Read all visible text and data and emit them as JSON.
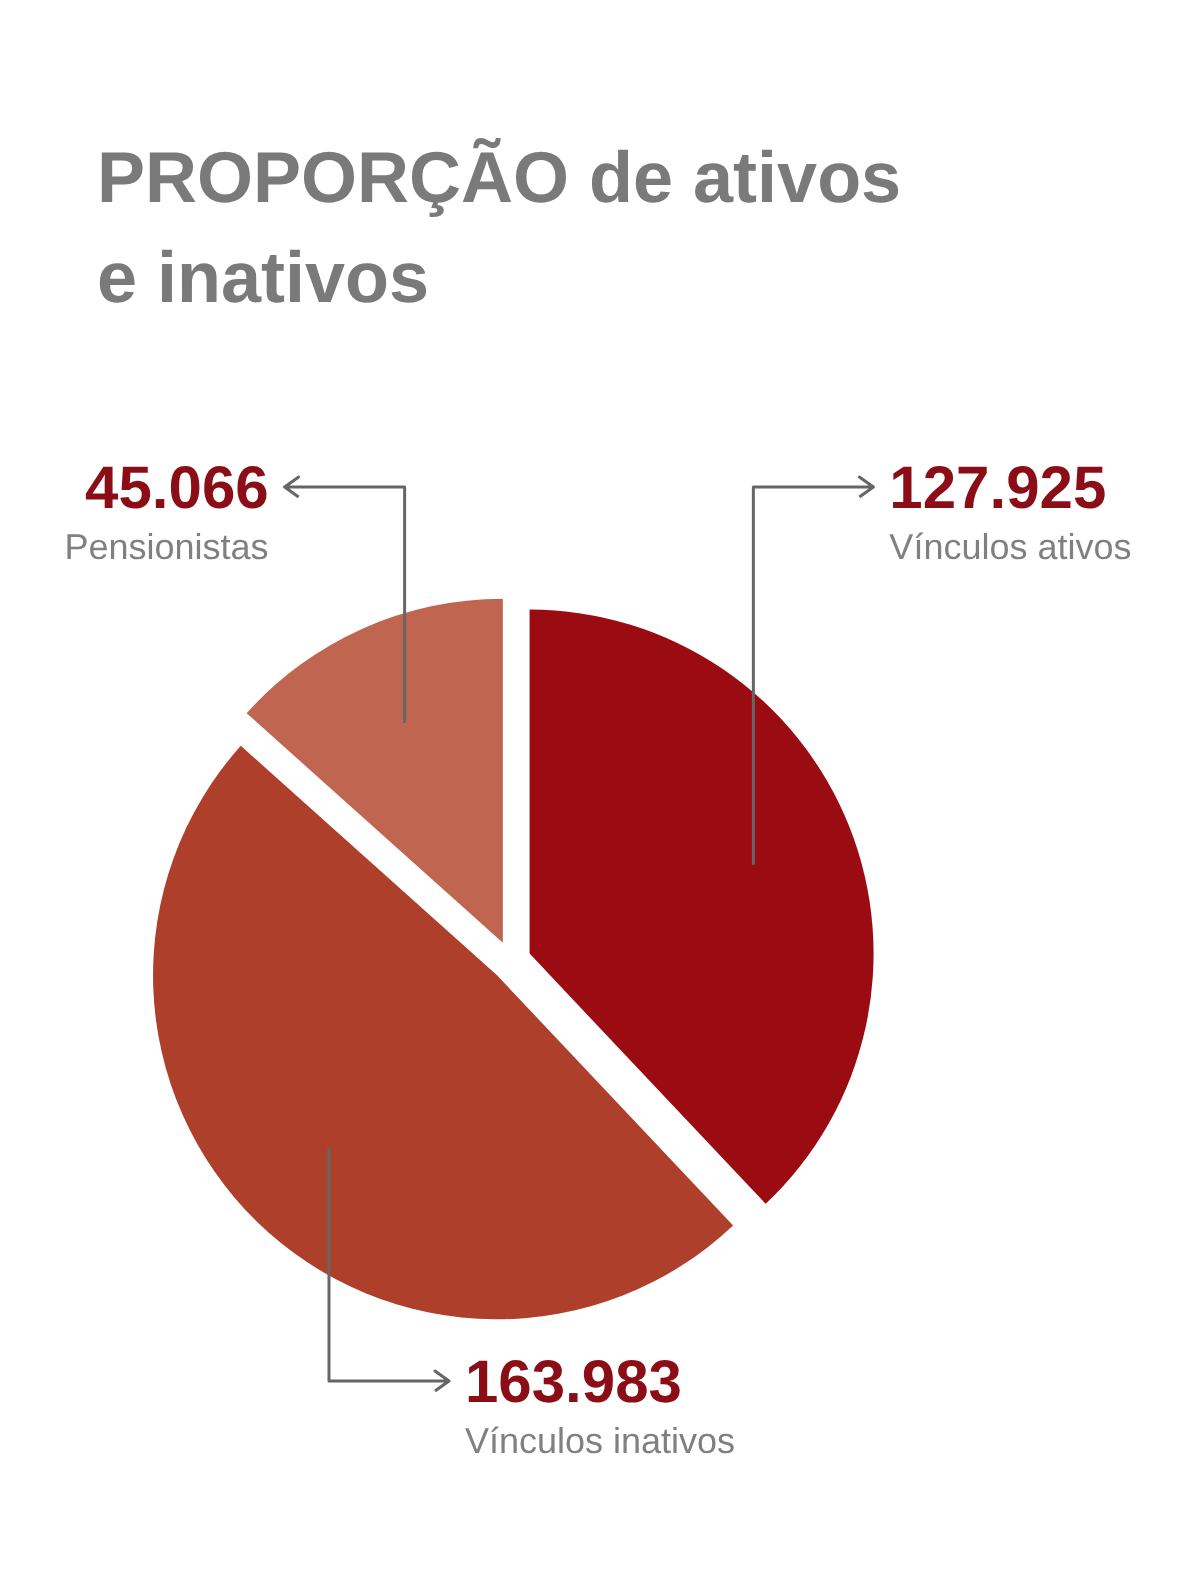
{
  "chart_data": {
    "type": "pie",
    "title": "PROPORÇÃO de ativos e inativos",
    "categories": [
      "Vínculos ativos",
      "Vínculos inativos",
      "Pensionistas"
    ],
    "values": [
      127925,
      163983,
      45066
    ],
    "value_labels": [
      "127.925",
      "163.983",
      "45.066"
    ],
    "colors": [
      "#9a0b12",
      "#ae3f2b",
      "#c0654f"
    ]
  }
}
